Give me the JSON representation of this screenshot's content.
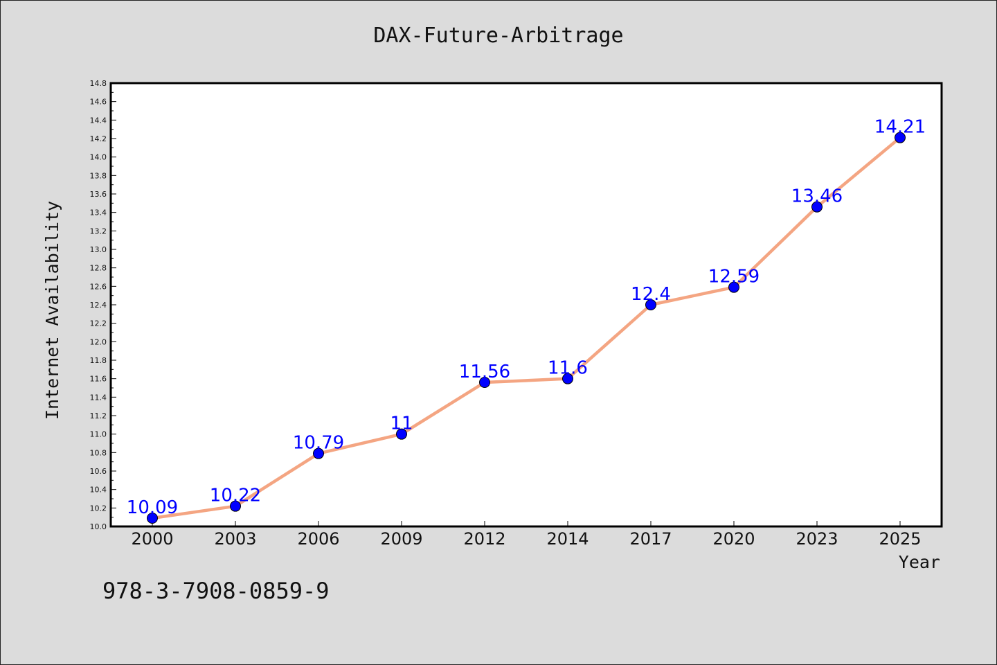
{
  "chart_data": {
    "type": "line",
    "title": "DAX-Future-Arbitrage",
    "xlabel": "Year",
    "ylabel": "Internet Availability",
    "categories": [
      "2000",
      "2003",
      "2006",
      "2009",
      "2012",
      "2014",
      "2017",
      "2020",
      "2023",
      "2025"
    ],
    "series": [
      {
        "values": [
          10.09,
          10.22,
          10.79,
          11,
          11.56,
          11.6,
          12.4,
          12.59,
          13.46,
          14.21
        ],
        "labels": [
          "10.09",
          "10.22",
          "10.79",
          "11",
          "11.56",
          "11.6",
          "12.4",
          "12.59",
          "13.46",
          "14.21"
        ]
      }
    ],
    "ylim": [
      10.0,
      14.8
    ],
    "yticks": [
      "10.0",
      "10.2",
      "10.4",
      "10.6",
      "10.8",
      "11.0",
      "11.2",
      "11.4",
      "11.6",
      "11.8",
      "12.0",
      "12.2",
      "12.4",
      "12.6",
      "12.8",
      "13.0",
      "13.2",
      "13.4",
      "13.6",
      "13.8",
      "14.0",
      "14.2",
      "14.4",
      "14.6",
      "14.8"
    ],
    "grid": false,
    "line_color": "#f4a582",
    "marker_color": "#0000ff",
    "label_color": "#0000ff",
    "background": "#dcdcdc",
    "plot_background": "#ffffff"
  },
  "footer": "978-3-7908-0859-9"
}
